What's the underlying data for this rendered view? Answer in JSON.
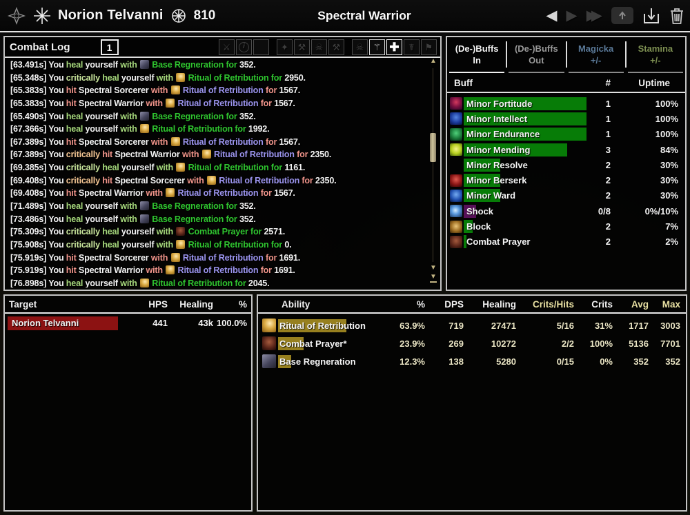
{
  "colors": {
    "heal": "#a6d87c",
    "heal_crit": "#cbe89e",
    "heal_ability": "#2fc42f",
    "hit": "#f0948a",
    "hit_crit": "#f6c794",
    "hit_ability": "#9b94ee",
    "buff_bar_green": "#077c07",
    "buff_bar_purple": "#571058",
    "target_bar_red": "#8c1212",
    "ability_bar_gold": "#97801f",
    "ability_value": "#eae5c4",
    "gold_header": "#e8e0a2",
    "magicka_tab": "#5b7a99",
    "stamina_tab": "#7d8f52",
    "scrollbar_tan": "#c2b482",
    "panel_border": "#c4c4c4"
  },
  "top_bar": {
    "player_name": "Norion Telvanni",
    "champion_points": "810",
    "title": "Spectral Warrior",
    "nav": {
      "prev_glyph": "◀",
      "next_glyph": "▶",
      "last_glyph": "▶▶"
    }
  },
  "combat_log": {
    "title": "Combat Log",
    "fight_number": "1",
    "words": {
      "you": "You",
      "critically": "critically",
      "with": "with",
      "for": "for"
    },
    "toolbar": [
      {
        "name": "weapons-icon",
        "glyph": "⚔",
        "state": "dim"
      },
      {
        "name": "info-icon",
        "glyph": "i",
        "round": true,
        "state": "dim"
      },
      {
        "name": "chart-icon",
        "glyph": "",
        "bars": true,
        "state": "dim"
      },
      {
        "name": "swirl-icon",
        "glyph": "✦",
        "state": "dim"
      },
      {
        "name": "damage-out-icon",
        "glyph": "⚒",
        "state": "dim"
      },
      {
        "name": "damage-in-icon",
        "glyph": "☠",
        "state": "dim"
      },
      {
        "name": "group-damage-out-icon",
        "glyph": "⚒",
        "state": "dim"
      },
      {
        "name": "group-damage-in-icon",
        "glyph": "☠",
        "state": "dim"
      },
      {
        "name": "healing-out-icon",
        "glyph": "⚚",
        "state": "active"
      },
      {
        "name": "healing-in-icon",
        "glyph": "✚",
        "state": "active-bright"
      },
      {
        "name": "deaths-icon",
        "glyph": "☤",
        "state": "dim"
      },
      {
        "name": "resources-icon",
        "glyph": "⚑",
        "state": "dim"
      }
    ],
    "rows": [
      {
        "time": "[63.491s]",
        "type": "heal",
        "crit": false,
        "verb": "heal",
        "target": "yourself",
        "icon": "regen",
        "ability": "Base Regneration",
        "amount": "352."
      },
      {
        "time": "[65.348s]",
        "type": "heal",
        "crit": true,
        "verb": "heal",
        "target": "yourself",
        "icon": "ritual",
        "ability": "Ritual of Retribution",
        "amount": "2950."
      },
      {
        "time": "[65.383s]",
        "type": "hit",
        "crit": false,
        "verb": "hit",
        "target": "Spectral Sorcerer",
        "icon": "ritual",
        "ability": "Ritual of Retribution",
        "amount": "1567."
      },
      {
        "time": "[65.383s]",
        "type": "hit",
        "crit": false,
        "verb": "hit",
        "target": "Spectral Warrior",
        "icon": "ritual",
        "ability": "Ritual of Retribution",
        "amount": "1567."
      },
      {
        "time": "[65.490s]",
        "type": "heal",
        "crit": false,
        "verb": "heal",
        "target": "yourself",
        "icon": "regen",
        "ability": "Base Regneration",
        "amount": "352."
      },
      {
        "time": "[67.366s]",
        "type": "heal",
        "crit": false,
        "verb": "heal",
        "target": "yourself",
        "icon": "ritual",
        "ability": "Ritual of Retribution",
        "amount": "1992."
      },
      {
        "time": "[67.389s]",
        "type": "hit",
        "crit": false,
        "verb": "hit",
        "target": "Spectral Sorcerer",
        "icon": "ritual",
        "ability": "Ritual of Retribution",
        "amount": "1567."
      },
      {
        "time": "[67.389s]",
        "type": "hit",
        "crit": true,
        "verb": "hit",
        "target": "Spectral Warrior",
        "icon": "ritual",
        "ability": "Ritual of Retribution",
        "amount": "2350."
      },
      {
        "time": "[69.385s]",
        "type": "heal",
        "crit": true,
        "verb": "heal",
        "target": "yourself",
        "icon": "ritual",
        "ability": "Ritual of Retribution",
        "amount": "1161."
      },
      {
        "time": "[69.408s]",
        "type": "hit",
        "crit": true,
        "verb": "hit",
        "target": "Spectral Sorcerer",
        "icon": "ritual",
        "ability": "Ritual of Retribution",
        "amount": "2350."
      },
      {
        "time": "[69.408s]",
        "type": "hit",
        "crit": false,
        "verb": "hit",
        "target": "Spectral Warrior",
        "icon": "ritual",
        "ability": "Ritual of Retribution",
        "amount": "1567."
      },
      {
        "time": "[71.489s]",
        "type": "heal",
        "crit": false,
        "verb": "heal",
        "target": "yourself",
        "icon": "regen",
        "ability": "Base Regneration",
        "amount": "352."
      },
      {
        "time": "[73.486s]",
        "type": "heal",
        "crit": false,
        "verb": "heal",
        "target": "yourself",
        "icon": "regen",
        "ability": "Base Regneration",
        "amount": "352."
      },
      {
        "time": "[75.309s]",
        "type": "heal",
        "crit": true,
        "verb": "heal",
        "target": "yourself",
        "icon": "prayer",
        "ability": "Combat Prayer",
        "amount": "2571."
      },
      {
        "time": "[75.908s]",
        "type": "heal",
        "crit": true,
        "verb": "heal",
        "target": "yourself",
        "icon": "ritual",
        "ability": "Ritual of Retribution",
        "amount": "0."
      },
      {
        "time": "[75.919s]",
        "type": "hit",
        "crit": false,
        "verb": "hit",
        "target": "Spectral Sorcerer",
        "icon": "ritual",
        "ability": "Ritual of Retribution",
        "amount": "1691."
      },
      {
        "time": "[75.919s]",
        "type": "hit",
        "crit": false,
        "verb": "hit",
        "target": "Spectral Warrior",
        "icon": "ritual",
        "ability": "Ritual of Retribution",
        "amount": "1691."
      },
      {
        "time": "[76.898s]",
        "type": "heal",
        "crit": false,
        "verb": "heal",
        "target": "yourself",
        "icon": "ritual",
        "ability": "Ritual of Retribution",
        "amount": "2045."
      }
    ]
  },
  "buffs": {
    "tabs": [
      {
        "key": "buffs-in",
        "line1": "(De-)Buffs",
        "line2": "In",
        "state": "active"
      },
      {
        "key": "buffs-out",
        "line1": "(De-)Buffs",
        "line2": "Out",
        "state": "inactive"
      },
      {
        "key": "magicka",
        "line1": "Magicka",
        "line2": "+/-",
        "state": "magicka"
      },
      {
        "key": "stamina",
        "line1": "Stamina",
        "line2": "+/-",
        "state": "stamina"
      }
    ],
    "columns": {
      "buff": "Buff",
      "count": "#",
      "uptime": "Uptime"
    },
    "rows": [
      {
        "name": "Minor Fortitude",
        "icon": "fortitude",
        "count": "1",
        "uptime": "100%",
        "pct_num": 100,
        "bar": "green"
      },
      {
        "name": "Minor Intellect",
        "icon": "intellect",
        "count": "1",
        "uptime": "100%",
        "pct_num": 100,
        "bar": "green"
      },
      {
        "name": "Minor Endurance",
        "icon": "endurance",
        "count": "1",
        "uptime": "100%",
        "pct_num": 100,
        "bar": "green"
      },
      {
        "name": "Minor Mending",
        "icon": "mending",
        "count": "3",
        "uptime": "84%",
        "pct_num": 84,
        "bar": "green"
      },
      {
        "name": "Minor Resolve",
        "icon": "resolve",
        "count": "2",
        "uptime": "30%",
        "pct_num": 30,
        "bar": "green"
      },
      {
        "name": "Minor Berserk",
        "icon": "berserk",
        "count": "2",
        "uptime": "30%",
        "pct_num": 30,
        "bar": "green"
      },
      {
        "name": "Minor Ward",
        "icon": "ward",
        "count": "2",
        "uptime": "30%",
        "pct_num": 30,
        "bar": "green"
      },
      {
        "name": "Shock",
        "icon": "shock",
        "count": "0/8",
        "uptime": "0%/10%",
        "pct_num": 10,
        "bar": "purple"
      },
      {
        "name": "Block",
        "icon": "block",
        "count": "2",
        "uptime": "7%",
        "pct_num": 7,
        "bar": "green"
      },
      {
        "name": "Combat Prayer",
        "icon": "prayer",
        "count": "2",
        "uptime": "2%",
        "pct_num": 2,
        "bar": "green"
      }
    ]
  },
  "target_panel": {
    "columns": {
      "target": "Target",
      "hps": "HPS",
      "healing": "Healing",
      "pct": "%"
    },
    "rows": [
      {
        "name": "Norion Telvanni",
        "hps": "441",
        "healing": "43k",
        "pct": "100.0%",
        "pct_num": 100
      }
    ]
  },
  "ability_panel": {
    "columns": [
      {
        "label": "Ability",
        "tone": "white",
        "align": "left"
      },
      {
        "label": "%",
        "tone": "white",
        "align": "right"
      },
      {
        "label": "DPS",
        "tone": "white",
        "align": "right"
      },
      {
        "label": "Healing",
        "tone": "white",
        "align": "right"
      },
      {
        "label": "Crits/Hits",
        "tone": "gold",
        "align": "right"
      },
      {
        "label": "Crits",
        "tone": "white",
        "align": "right"
      },
      {
        "label": "Avg",
        "tone": "gold",
        "align": "right"
      },
      {
        "label": "Max",
        "tone": "gold",
        "align": "right"
      }
    ],
    "rows": [
      {
        "name": "Ritual of Retribution",
        "icon": "ritual",
        "pct": "63.9%",
        "pct_num": 63.9,
        "dps": "719",
        "healing": "27471",
        "crits_hits": "5/16",
        "crits": "31%",
        "avg": "1717",
        "max": "3003"
      },
      {
        "name": "Combat Prayer*",
        "icon": "prayer",
        "pct": "23.9%",
        "pct_num": 23.9,
        "dps": "269",
        "healing": "10272",
        "crits_hits": "2/2",
        "crits": "100%",
        "avg": "5136",
        "max": "7701"
      },
      {
        "name": "Base Regneration",
        "icon": "regen",
        "pct": "12.3%",
        "pct_num": 12.3,
        "dps": "138",
        "healing": "5280",
        "crits_hits": "0/15",
        "crits": "0%",
        "avg": "352",
        "max": "352"
      }
    ]
  }
}
